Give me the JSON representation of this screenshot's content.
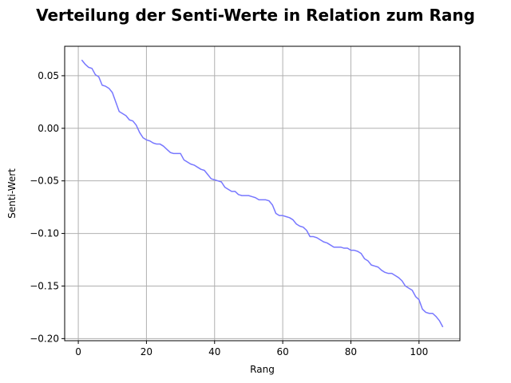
{
  "chart_data": {
    "type": "line",
    "title": "Verteilung der Senti-Werte in Relation zum Rang",
    "xlabel": "Rang",
    "ylabel": "Senti-Wert",
    "xlim": [
      -4,
      112
    ],
    "ylim": [
      -0.202,
      0.078
    ],
    "xticks": [
      0,
      20,
      40,
      60,
      80,
      100
    ],
    "xtick_labels": [
      "0",
      "20",
      "40",
      "60",
      "80",
      "100"
    ],
    "yticks": [
      0.05,
      0.0,
      -0.05,
      -0.1,
      -0.15,
      -0.2
    ],
    "ytick_labels": [
      "0.05",
      "0.00",
      "−0.05",
      "−0.10",
      "−0.15",
      "−0.20"
    ],
    "grid": true,
    "series": [
      {
        "color": "#7777ff",
        "x": [
          1,
          2,
          3,
          4,
          5,
          6,
          7,
          8,
          9,
          10,
          11,
          12,
          13,
          14,
          15,
          16,
          17,
          18,
          19,
          20,
          21,
          22,
          23,
          24,
          25,
          26,
          27,
          28,
          29,
          30,
          31,
          32,
          33,
          34,
          35,
          36,
          37,
          38,
          39,
          40,
          41,
          42,
          43,
          44,
          45,
          46,
          47,
          48,
          49,
          50,
          51,
          52,
          53,
          54,
          55,
          56,
          57,
          58,
          59,
          60,
          61,
          62,
          63,
          64,
          65,
          66,
          67,
          68,
          69,
          70,
          71,
          72,
          73,
          74,
          75,
          76,
          77,
          78,
          79,
          80,
          81,
          82,
          83,
          84,
          85,
          86,
          87,
          88,
          89,
          90,
          91,
          92,
          93,
          94,
          95,
          96,
          97,
          98,
          99,
          100,
          101,
          102,
          103,
          104,
          105,
          106,
          107
        ],
        "y": [
          0.065,
          0.061,
          0.058,
          0.057,
          0.051,
          0.049,
          0.041,
          0.04,
          0.038,
          0.034,
          0.025,
          0.016,
          0.014,
          0.012,
          0.008,
          0.007,
          0.003,
          -0.004,
          -0.009,
          -0.011,
          -0.012,
          -0.014,
          -0.015,
          -0.015,
          -0.017,
          -0.02,
          -0.023,
          -0.024,
          -0.024,
          -0.024,
          -0.03,
          -0.032,
          -0.034,
          -0.035,
          -0.037,
          -0.039,
          -0.04,
          -0.044,
          -0.048,
          -0.049,
          -0.05,
          -0.051,
          -0.056,
          -0.058,
          -0.06,
          -0.06,
          -0.063,
          -0.064,
          -0.064,
          -0.064,
          -0.065,
          -0.066,
          -0.068,
          -0.068,
          -0.068,
          -0.069,
          -0.073,
          -0.081,
          -0.083,
          -0.083,
          -0.084,
          -0.085,
          -0.087,
          -0.091,
          -0.093,
          -0.094,
          -0.097,
          -0.103,
          -0.103,
          -0.104,
          -0.106,
          -0.108,
          -0.109,
          -0.111,
          -0.113,
          -0.113,
          -0.113,
          -0.114,
          -0.114,
          -0.116,
          -0.116,
          -0.117,
          -0.119,
          -0.124,
          -0.126,
          -0.13,
          -0.131,
          -0.132,
          -0.135,
          -0.137,
          -0.138,
          -0.138,
          -0.14,
          -0.142,
          -0.145,
          -0.15,
          -0.152,
          -0.154,
          -0.16,
          -0.163,
          -0.172,
          -0.175,
          -0.176,
          -0.176,
          -0.179,
          -0.183,
          -0.189
        ]
      }
    ]
  }
}
